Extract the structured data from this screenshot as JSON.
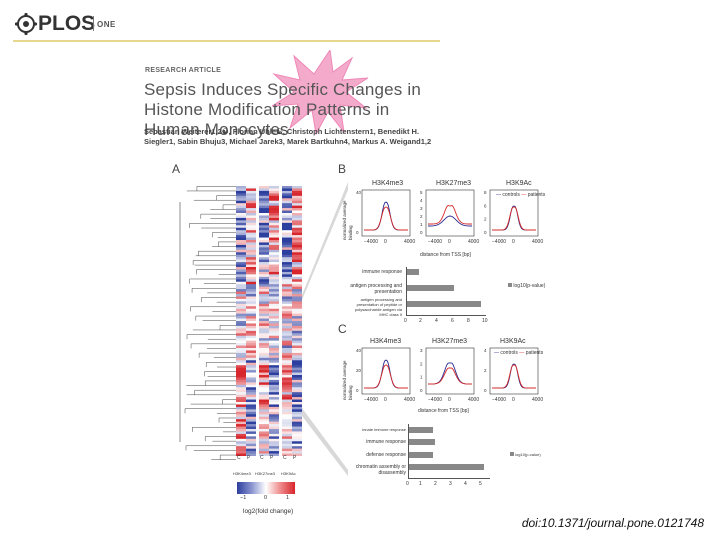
{
  "header": {
    "logo_text": "PLOS",
    "logo_suffix": "ONE"
  },
  "article": {
    "type_label": "RESEARCH ARTICLE",
    "title": "Sepsis Induces Specific Changes in Histone Modification Patterns in Human Monocytes",
    "authors": "Sebastian Weiterer1,2☯, Florian Uhle☯, Christoph Lichtenstern1, Benedikt H. Siegler1, Sabin Bhuju3, Michael Jarek3, Marek Bartkuhn4, Markus A. Weigand1,2"
  },
  "figure": {
    "panel_a": "A",
    "panel_b": "B",
    "panel_c": "C",
    "heatmap_cols": [
      "C",
      "P",
      "C",
      "P",
      "C",
      "P"
    ],
    "heatmap_groups": [
      "H3K4me3",
      "H3K27me3",
      "H3K9Ac"
    ],
    "colorbar_ticks": [
      "−1",
      "0",
      "1"
    ],
    "colorbar_label": "log2(fold change)",
    "profile_titles": [
      "H3K4me3",
      "H3K27me3",
      "H3K9Ac"
    ],
    "profile_ylabel": "normalized average binding",
    "profile_xlabel": "distance from TSS [bp]",
    "legend_controls": "controls",
    "legend_patients": "patients",
    "b_xticks": [
      "−4000",
      "0",
      "4000"
    ],
    "b_yticks": [
      [
        "0",
        "40"
      ],
      [
        "0",
        "1",
        "2",
        "3",
        "4",
        "5"
      ],
      [
        "0",
        "2",
        "6",
        "8"
      ]
    ],
    "c_yticks": [
      [
        "0",
        "20",
        "40"
      ],
      [
        "0",
        "1",
        "2",
        "3"
      ],
      [
        "0",
        "2",
        "4"
      ]
    ],
    "c_titles": [
      "H3K4me3",
      "H3K27me3",
      "H3K9Ac"
    ],
    "go_legend": "log10(p-value)",
    "go_b_terms": [
      "immune response",
      "antigen processing and presentation",
      "antigen processing and presentation of peptide or polysaccharide antigen via MHC class II"
    ],
    "go_b_values": [
      1.5,
      6.0,
      9.5
    ],
    "go_b_xticks": [
      "0",
      "2",
      "4",
      "6",
      "8",
      "10"
    ],
    "go_c_terms": [
      "innate immune response",
      "immune response",
      "defense response",
      "chromatin assembly or disassembly"
    ],
    "go_c_values": [
      1.6,
      1.7,
      1.6,
      5.0
    ],
    "go_c_xticks": [
      "0",
      "1",
      "2",
      "3",
      "4",
      "5"
    ]
  },
  "footer": {
    "doi": "doi:10.1371/journal.pone.0121748"
  },
  "colors": {
    "control": "#2b2b8f",
    "patient": "#d62b2b",
    "heat_low": "#2c3e9e",
    "heat_high": "#d7262c",
    "accent_line": "#e6d98f",
    "starburst": "#f4a7c9"
  }
}
